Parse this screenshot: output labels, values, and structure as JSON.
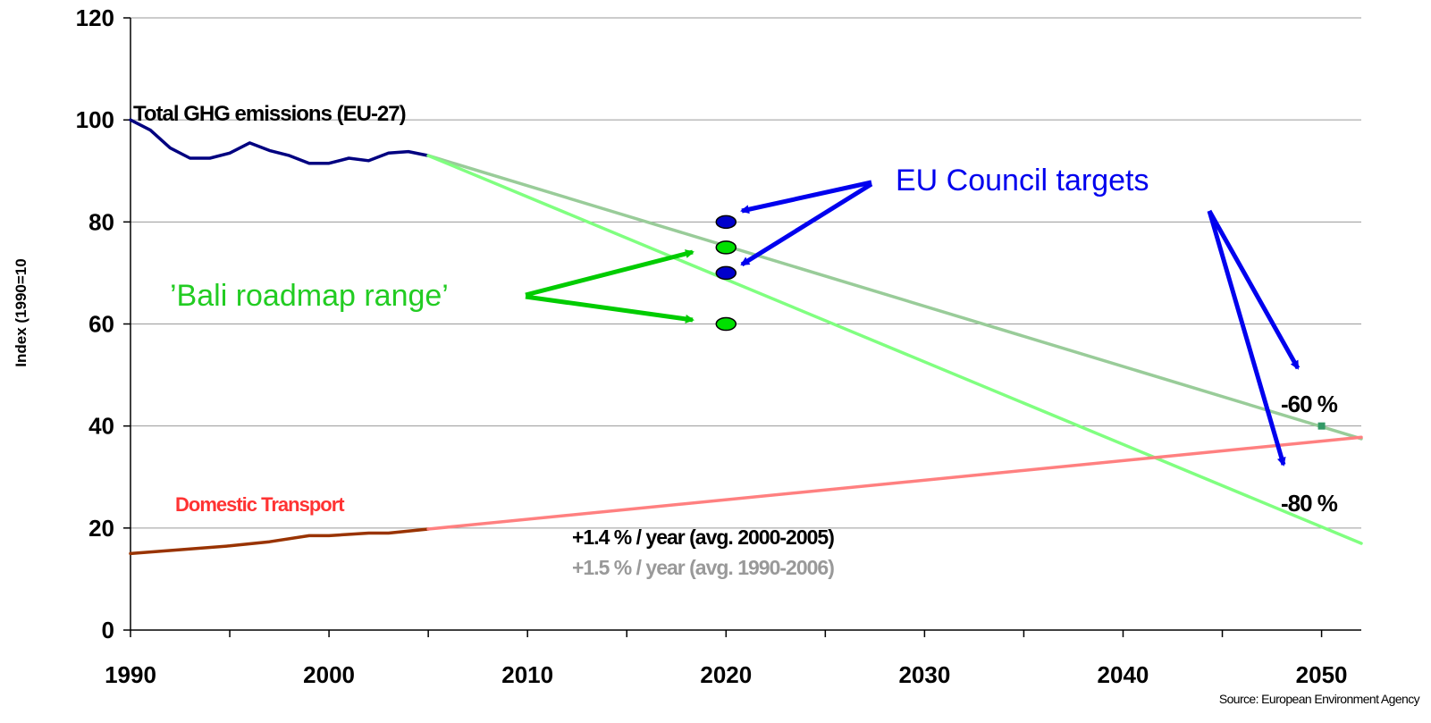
{
  "chart_data": {
    "type": "line",
    "ylabel": "Index (1990=10",
    "xlim": [
      1990,
      2052
    ],
    "ylim": [
      0,
      120
    ],
    "x_ticks": [
      "1990",
      "2000",
      "2010",
      "2020",
      "2030",
      "2040",
      "2050"
    ],
    "y_ticks": [
      "0",
      "20",
      "40",
      "60",
      "80",
      "100",
      "120"
    ],
    "grid": "horizontal",
    "series": [
      {
        "name": "Total GHG emissions (EU-27)",
        "color": "#000080",
        "x": [
          1990,
          1991,
          1992,
          1993,
          1994,
          1995,
          1996,
          1997,
          1998,
          1999,
          2000,
          2001,
          2002,
          2003,
          2004,
          2005
        ],
        "y": [
          100,
          98,
          94.5,
          92.5,
          92.5,
          93.5,
          95.5,
          94,
          93,
          91.5,
          91.5,
          92.5,
          92,
          93.5,
          93.8,
          93
        ]
      },
      {
        "name": "Domestic Transport",
        "color": "#993300",
        "x": [
          1990,
          1995,
          1997,
          1999,
          2000,
          2002,
          2003,
          2005
        ],
        "y": [
          15,
          16.5,
          17.3,
          18.5,
          18.5,
          19,
          19,
          19.8
        ]
      },
      {
        "name": "-60 % path",
        "color": "#99cc99",
        "x": [
          2005,
          2052
        ],
        "y": [
          93,
          37.5
        ]
      },
      {
        "name": "-80 % path",
        "color": "#80ff80",
        "x": [
          2005,
          2052
        ],
        "y": [
          93,
          17
        ]
      },
      {
        "name": "Transport projection",
        "color": "#ff8080",
        "x": [
          2005,
          2052
        ],
        "y": [
          19.8,
          37.8
        ]
      }
    ],
    "markers": [
      {
        "x": 2020,
        "y": 80,
        "color": "#0000cc"
      },
      {
        "x": 2020,
        "y": 70,
        "color": "#0000cc"
      },
      {
        "x": 2020,
        "y": 75,
        "color": "#00e000"
      },
      {
        "x": 2020,
        "y": 60,
        "color": "#00e000"
      },
      {
        "x": 2050,
        "y": 40,
        "color": "#339966"
      }
    ],
    "annotations": {
      "total_label": "Total GHG emissions (EU-27)",
      "transport_label": "Domestic Transport",
      "eu_targets": "EU Council targets",
      "bali": "’Bali roadmap range’",
      "pct60": "-60 %",
      "pct80": "-80 %",
      "rate1": "+1.4 % / year (avg. 2000-2005)",
      "rate2": "+1.5 % / year (avg. 1990-2006)",
      "source": "Source: European Environment Agency"
    }
  }
}
